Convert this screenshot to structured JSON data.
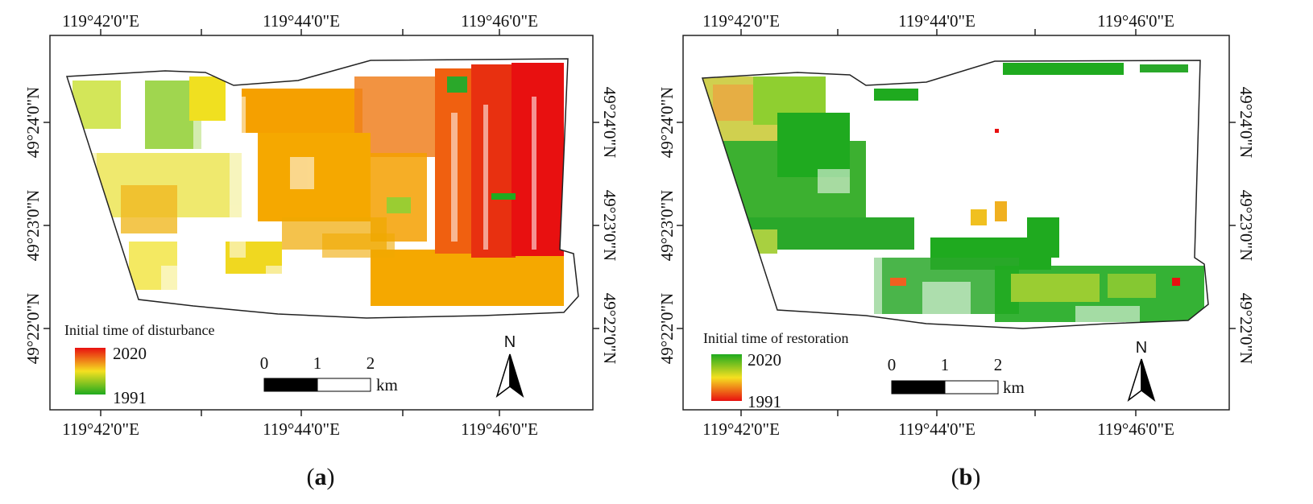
{
  "colors": {
    "green": "#1faa1f",
    "yellowgreen": "#9acd32",
    "yellow": "#f0e020",
    "orange": "#f5a000",
    "redorange": "#f06010",
    "red": "#e81010"
  },
  "panels": [
    {
      "id": "a",
      "caption_letter": "a",
      "lon_top": [
        "119°42'0\"E",
        "119°44'0\"E",
        "119°46'0\"E"
      ],
      "lon_bottom": [
        "119°42'0\"E",
        "119°44'0\"E",
        "119°46'0\"E"
      ],
      "lat_left": [
        "49°24'0\"N",
        "49°23'0\"N",
        "49°22'0\"N"
      ],
      "lat_right": [
        "49°24'0\"N",
        "49°23'0\"N",
        "49°22'0\"N"
      ],
      "legend": {
        "title": "Initial time of disturbance",
        "top_value": "2020",
        "bottom_value": "1991"
      },
      "scale": {
        "labels": [
          "0",
          "1",
          "2"
        ],
        "unit": "km"
      },
      "north_label": "N"
    },
    {
      "id": "b",
      "caption_letter": "b",
      "lon_top": [
        "119°42'0\"E",
        "119°44'0\"E",
        "119°46'0\"E"
      ],
      "lon_bottom": [
        "119°42'0\"E",
        "119°44'0\"E",
        "119°46'0\"E"
      ],
      "lat_left": [
        "49°24'0\"N",
        "49°23'0\"N",
        "49°22'0\"N"
      ],
      "lat_right": [
        "49°24'0\"N",
        "49°23'0\"N",
        "49°22'0\"N"
      ],
      "legend": {
        "title": "Initial time of restoration",
        "top_value": "2020",
        "bottom_value": "1991"
      },
      "scale": {
        "labels": [
          "0",
          "1",
          "2"
        ],
        "unit": "km"
      },
      "north_label": "N"
    }
  ]
}
